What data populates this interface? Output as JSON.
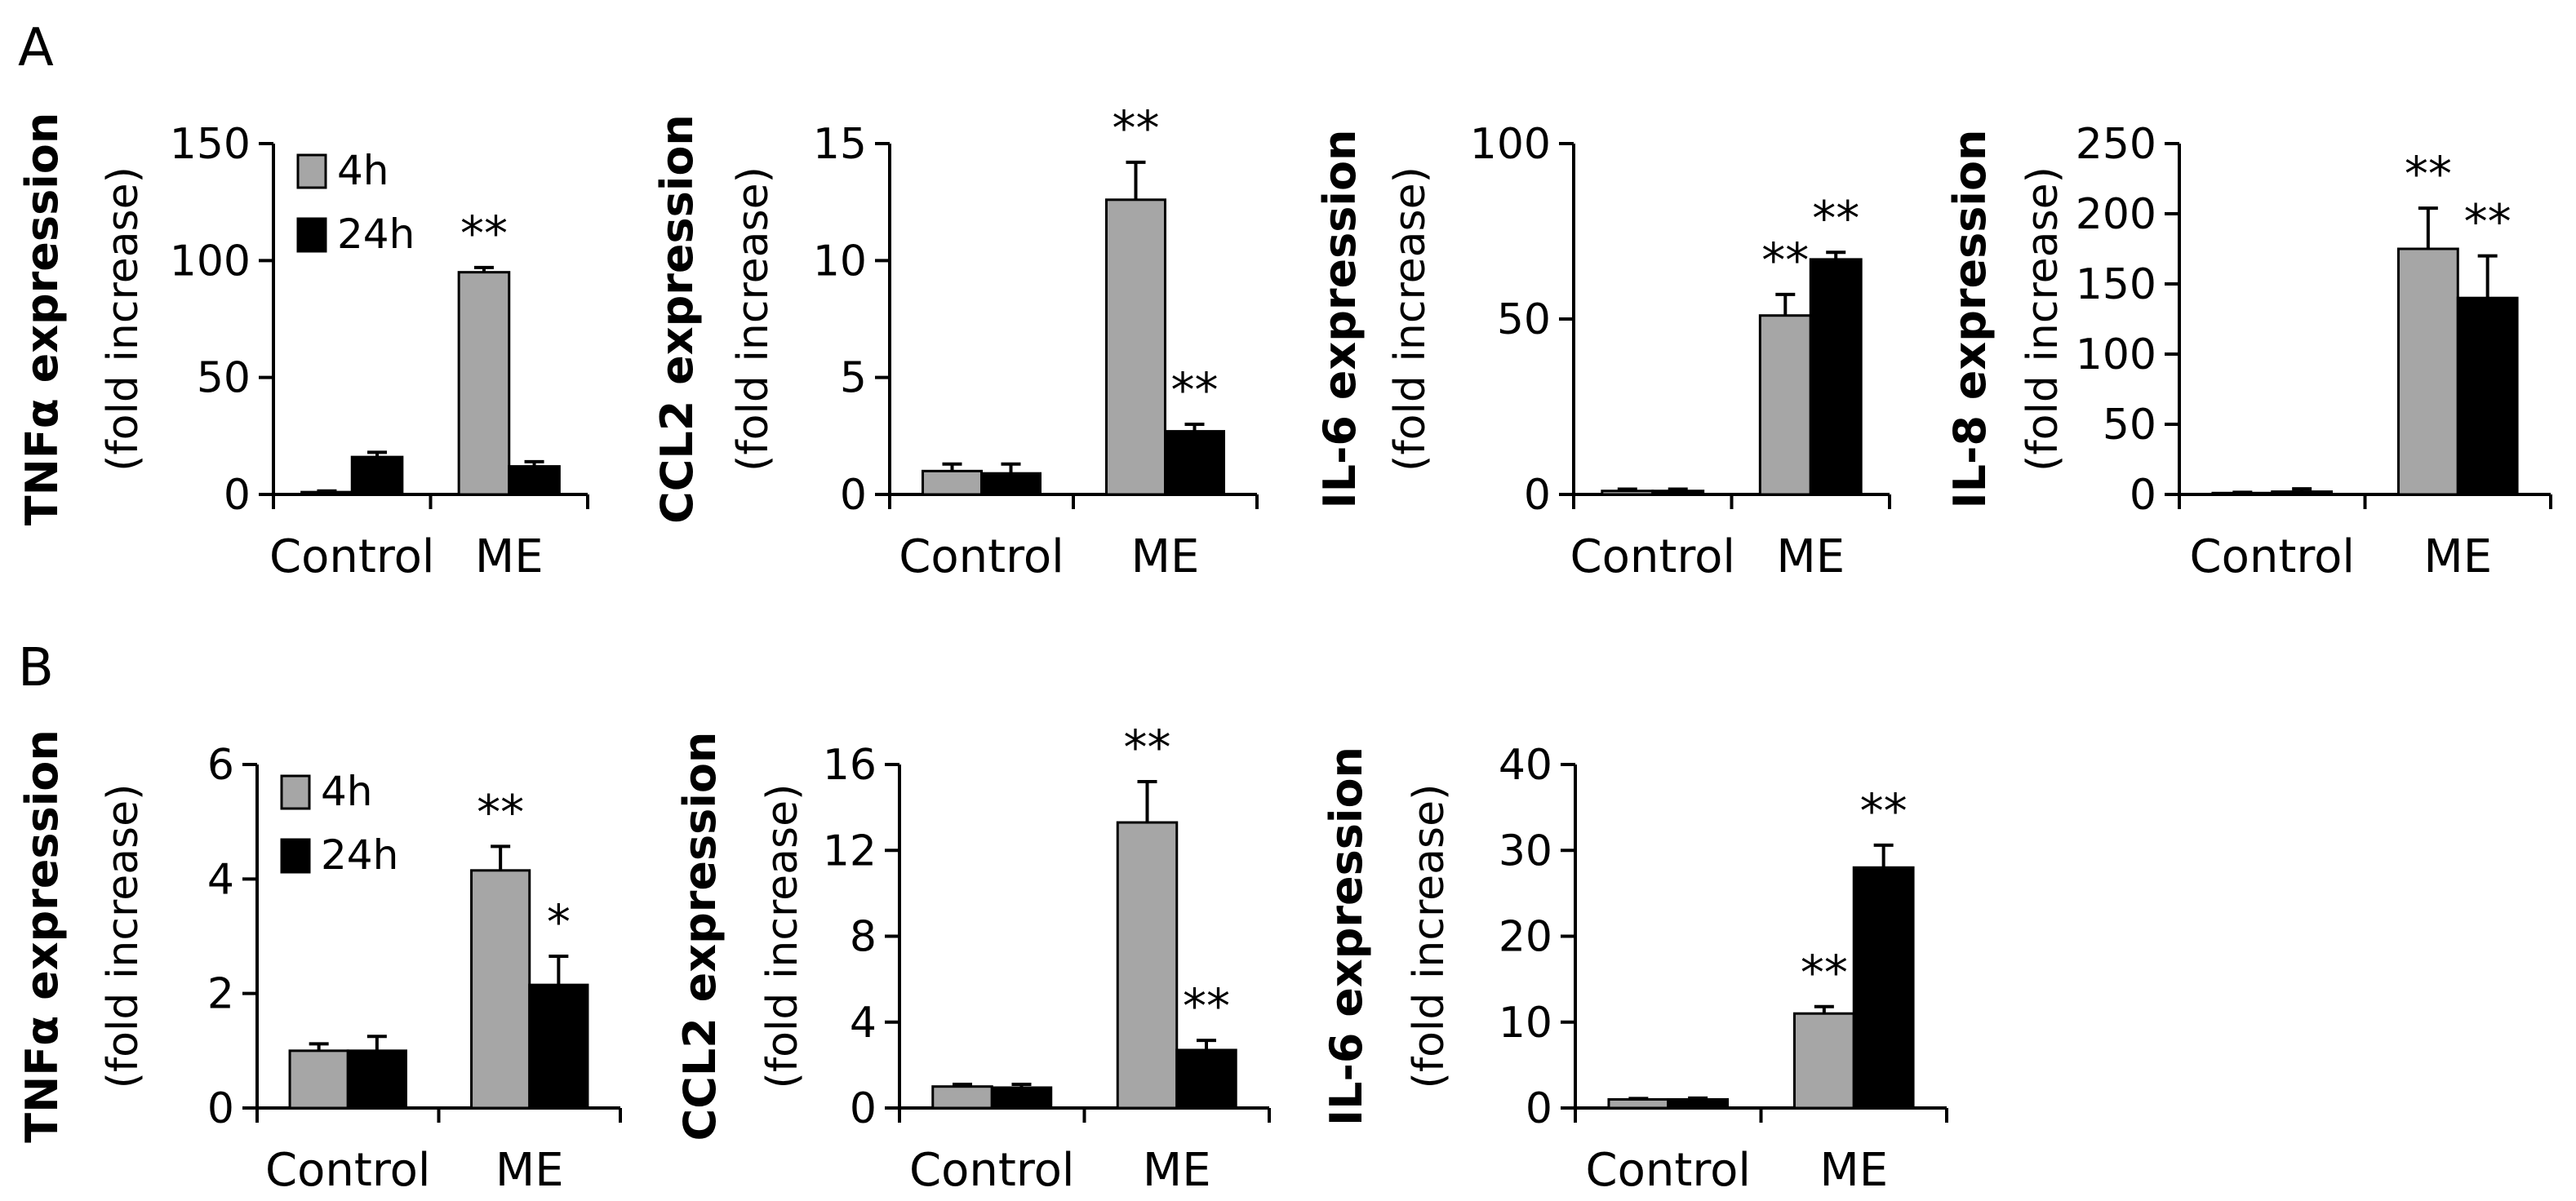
{
  "panels": [
    {
      "label": "A"
    },
    {
      "label": "B"
    }
  ],
  "legend": {
    "items": [
      "4h",
      "24h"
    ],
    "colors": [
      "#a6a6a6",
      "#000000"
    ]
  },
  "chart_data": [
    {
      "panel": "A",
      "type": "bar",
      "ylabel": "TNFα expression",
      "ylabel_sub": "(fold increase)",
      "categories": [
        "Control",
        "ME"
      ],
      "ylim": [
        0,
        150
      ],
      "yticks": [
        "0",
        "50",
        "100",
        "150"
      ],
      "series": [
        {
          "name": "4h",
          "values": [
            1,
            95
          ],
          "errors": [
            0.5,
            2
          ]
        },
        {
          "name": "24h",
          "values": [
            16,
            12
          ],
          "errors": [
            2,
            2
          ]
        }
      ],
      "annotations": [
        [
          "",
          "**"
        ],
        [
          "",
          ""
        ]
      ],
      "legend": true
    },
    {
      "panel": "A",
      "type": "bar",
      "ylabel": "CCL2 expression",
      "ylabel_sub": "(fold increase)",
      "categories": [
        "Control",
        "ME"
      ],
      "ylim": [
        0,
        15
      ],
      "yticks": [
        "0",
        "5",
        "10",
        "15"
      ],
      "series": [
        {
          "name": "4h",
          "values": [
            1,
            12.6
          ],
          "errors": [
            0.3,
            1.6
          ]
        },
        {
          "name": "24h",
          "values": [
            0.9,
            2.7
          ],
          "errors": [
            0.4,
            0.3
          ]
        }
      ],
      "annotations": [
        [
          "",
          "**"
        ],
        [
          "",
          "**"
        ]
      ]
    },
    {
      "panel": "A",
      "type": "bar",
      "ylabel": "IL-6 expression",
      "ylabel_sub": "(fold increase)",
      "categories": [
        "Control",
        "ME"
      ],
      "ylim": [
        0,
        100
      ],
      "yticks": [
        "0",
        "50",
        "100"
      ],
      "series": [
        {
          "name": "4h",
          "values": [
            1,
            51
          ],
          "errors": [
            0.5,
            6
          ]
        },
        {
          "name": "24h",
          "values": [
            1,
            67
          ],
          "errors": [
            0.5,
            2
          ]
        }
      ],
      "annotations": [
        [
          "",
          "**"
        ],
        [
          "",
          "**"
        ]
      ]
    },
    {
      "panel": "A",
      "type": "bar",
      "ylabel": "IL-8 expression",
      "ylabel_sub": "(fold increase)",
      "categories": [
        "Control",
        "ME"
      ],
      "ylim": [
        0,
        250
      ],
      "yticks": [
        "0",
        "50",
        "100",
        "150",
        "200",
        "250"
      ],
      "series": [
        {
          "name": "4h",
          "values": [
            1,
            175
          ],
          "errors": [
            0.5,
            29
          ]
        },
        {
          "name": "24h",
          "values": [
            2,
            140
          ],
          "errors": [
            2,
            30
          ]
        }
      ],
      "annotations": [
        [
          "",
          "**"
        ],
        [
          "",
          "**"
        ]
      ]
    },
    {
      "panel": "B",
      "type": "bar",
      "ylabel": "TNFα expression",
      "ylabel_sub": "(fold increase)",
      "categories": [
        "Control",
        "ME"
      ],
      "ylim": [
        0,
        6
      ],
      "yticks": [
        "0",
        "2",
        "4",
        "6"
      ],
      "series": [
        {
          "name": "4h",
          "values": [
            1.0,
            4.15
          ],
          "errors": [
            0.12,
            0.42
          ]
        },
        {
          "name": "24h",
          "values": [
            1.0,
            2.15
          ],
          "errors": [
            0.25,
            0.5
          ]
        }
      ],
      "annotations": [
        [
          "",
          "**"
        ],
        [
          "",
          "*"
        ]
      ],
      "legend": true
    },
    {
      "panel": "B",
      "type": "bar",
      "ylabel": "CCL2 expression",
      "ylabel_sub": "(fold increase)",
      "categories": [
        "Control",
        "ME"
      ],
      "ylim": [
        0,
        16
      ],
      "yticks": [
        "0",
        "4",
        "8",
        "12",
        "16"
      ],
      "series": [
        {
          "name": "4h",
          "values": [
            1.0,
            13.3
          ],
          "errors": [
            0.1,
            1.9
          ]
        },
        {
          "name": "24h",
          "values": [
            0.95,
            2.7
          ],
          "errors": [
            0.15,
            0.45
          ]
        }
      ],
      "annotations": [
        [
          "",
          "**"
        ],
        [
          "",
          "**"
        ]
      ]
    },
    {
      "panel": "B",
      "type": "bar",
      "ylabel": "IL-6 expression",
      "ylabel_sub": "(fold increase)",
      "categories": [
        "Control",
        "ME"
      ],
      "ylim": [
        0,
        40
      ],
      "yticks": [
        "0",
        "10",
        "20",
        "30",
        "40"
      ],
      "series": [
        {
          "name": "4h",
          "values": [
            1.0,
            11.0
          ],
          "errors": [
            0.1,
            0.8
          ]
        },
        {
          "name": "24h",
          "values": [
            1.0,
            28.0
          ],
          "errors": [
            0.15,
            2.6
          ]
        }
      ],
      "annotations": [
        [
          "",
          "**"
        ],
        [
          "",
          "**"
        ]
      ]
    }
  ]
}
